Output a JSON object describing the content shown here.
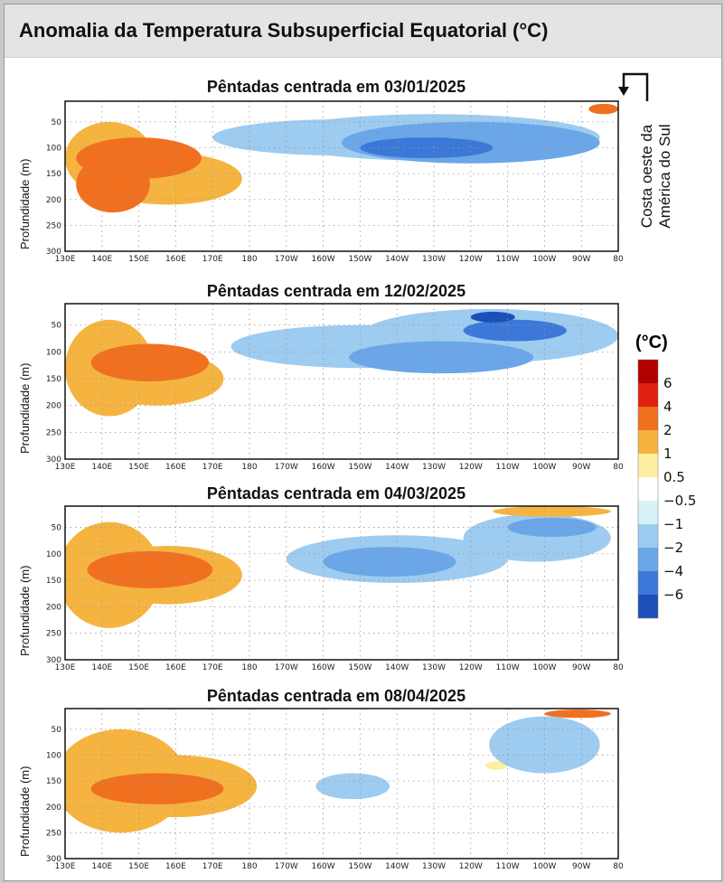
{
  "header": {
    "title": "Anomalia da Temperatura Subsuperficial Equatorial (°C)"
  },
  "annotation": {
    "line1": "Costa oeste da",
    "line2": "América do Sul"
  },
  "legend": {
    "unit": "(°C)",
    "levels": [
      "6",
      "4",
      "2",
      "1",
      "0.5",
      "−0.5",
      "−1",
      "−2",
      "−4",
      "−6"
    ],
    "colors": [
      "#b00000",
      "#e02010",
      "#f07020",
      "#f5b440",
      "#fdeea0",
      "#ffffff",
      "#d7f3f8",
      "#9ecbf0",
      "#6aa6e8",
      "#3b78d8",
      "#1c50b8"
    ]
  },
  "axes": {
    "ylabel": "Profundidade (m)",
    "x_ticks": [
      "130E",
      "140E",
      "150E",
      "160E",
      "170E",
      "180",
      "170W",
      "160W",
      "150W",
      "140W",
      "130W",
      "120W",
      "110W",
      "100W",
      "90W",
      "80"
    ],
    "y_ticks": [
      "50",
      "100",
      "150",
      "200",
      "250",
      "300"
    ]
  },
  "chart_data": [
    {
      "type": "heatmap",
      "title": "Pêntadas centrada em 03/01/2025",
      "xlabel": "",
      "ylabel": "Profundidade (m)",
      "xlim": [
        130,
        280
      ],
      "ylim": [
        300,
        10
      ],
      "features": [
        {
          "lon": 142,
          "depth": 120,
          "rx": 12,
          "ry": 70,
          "value": 1
        },
        {
          "lon": 158,
          "depth": 160,
          "rx": 20,
          "ry": 50,
          "value": 1
        },
        {
          "lon": 150,
          "depth": 120,
          "rx": 17,
          "ry": 40,
          "value": 2
        },
        {
          "lon": 143,
          "depth": 170,
          "rx": 10,
          "ry": 55,
          "value": 2
        },
        {
          "lon": 205,
          "depth": 80,
          "rx": 35,
          "ry": 35,
          "value": -1
        },
        {
          "lon": 230,
          "depth": 80,
          "rx": 45,
          "ry": 45,
          "value": -1
        },
        {
          "lon": 240,
          "depth": 90,
          "rx": 35,
          "ry": 40,
          "value": -2
        },
        {
          "lon": 228,
          "depth": 100,
          "rx": 18,
          "ry": 20,
          "value": -4
        },
        {
          "lon": 276,
          "depth": 25,
          "rx": 4,
          "ry": 10,
          "value": 2
        }
      ]
    },
    {
      "type": "heatmap",
      "title": "Pêntadas centrada em 12/02/2025",
      "xlabel": "",
      "ylabel": "Profundidade (m)",
      "xlim": [
        130,
        280
      ],
      "ylim": [
        300,
        10
      ],
      "features": [
        {
          "lon": 142,
          "depth": 130,
          "rx": 12,
          "ry": 90,
          "value": 1
        },
        {
          "lon": 155,
          "depth": 150,
          "rx": 18,
          "ry": 50,
          "value": 1
        },
        {
          "lon": 153,
          "depth": 120,
          "rx": 16,
          "ry": 35,
          "value": 2
        },
        {
          "lon": 210,
          "depth": 90,
          "rx": 35,
          "ry": 40,
          "value": -1
        },
        {
          "lon": 245,
          "depth": 70,
          "rx": 35,
          "ry": 50,
          "value": -1
        },
        {
          "lon": 232,
          "depth": 110,
          "rx": 25,
          "ry": 30,
          "value": -2
        },
        {
          "lon": 252,
          "depth": 60,
          "rx": 14,
          "ry": 20,
          "value": -4
        },
        {
          "lon": 246,
          "depth": 35,
          "rx": 6,
          "ry": 10,
          "value": -6
        }
      ]
    },
    {
      "type": "heatmap",
      "title": "Pêntadas centrada em 04/03/2025",
      "xlabel": "",
      "ylabel": "Profundidade (m)",
      "xlim": [
        130,
        280
      ],
      "ylim": [
        300,
        10
      ],
      "features": [
        {
          "lon": 142,
          "depth": 140,
          "rx": 14,
          "ry": 100,
          "value": 1
        },
        {
          "lon": 158,
          "depth": 140,
          "rx": 20,
          "ry": 55,
          "value": 1
        },
        {
          "lon": 153,
          "depth": 130,
          "rx": 17,
          "ry": 35,
          "value": 2
        },
        {
          "lon": 220,
          "depth": 110,
          "rx": 30,
          "ry": 45,
          "value": -1
        },
        {
          "lon": 258,
          "depth": 70,
          "rx": 20,
          "ry": 45,
          "value": -1
        },
        {
          "lon": 218,
          "depth": 115,
          "rx": 18,
          "ry": 28,
          "value": -2
        },
        {
          "lon": 262,
          "depth": 50,
          "rx": 12,
          "ry": 18,
          "value": -2
        },
        {
          "lon": 262,
          "depth": 20,
          "rx": 16,
          "ry": 10,
          "value": 1
        }
      ]
    },
    {
      "type": "heatmap",
      "title": "Pêntadas centrada em 08/04/2025",
      "xlabel": "",
      "ylabel": "Profundidade (m)",
      "xlim": [
        130,
        280
      ],
      "ylim": [
        300,
        10
      ],
      "features": [
        {
          "lon": 145,
          "depth": 150,
          "rx": 18,
          "ry": 100,
          "value": 1
        },
        {
          "lon": 160,
          "depth": 160,
          "rx": 22,
          "ry": 60,
          "value": 1
        },
        {
          "lon": 155,
          "depth": 165,
          "rx": 18,
          "ry": 30,
          "value": 2
        },
        {
          "lon": 208,
          "depth": 160,
          "rx": 10,
          "ry": 25,
          "value": -1
        },
        {
          "lon": 260,
          "depth": 80,
          "rx": 15,
          "ry": 55,
          "value": -1
        },
        {
          "lon": 269,
          "depth": 20,
          "rx": 9,
          "ry": 8,
          "value": 2
        },
        {
          "lon": 247,
          "depth": 120,
          "rx": 3,
          "ry": 8,
          "value": 0.5
        }
      ]
    }
  ]
}
